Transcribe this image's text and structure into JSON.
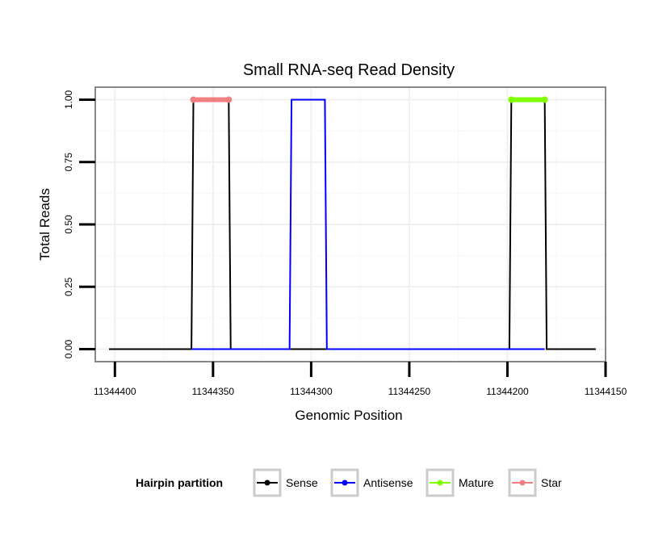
{
  "chart_data": {
    "type": "line",
    "title": "Small RNA-seq Read Density",
    "xlabel": "Genomic Position",
    "ylabel": "Total Reads",
    "x_reversed": true,
    "xlim": [
      11344410,
      11344150
    ],
    "ylim": [
      -0.05,
      1.05
    ],
    "x_ticks": [
      11344400,
      11344350,
      11344300,
      11344250,
      11344200,
      11344150
    ],
    "x_tick_labels": [
      "11344400",
      "11344350",
      "11344300",
      "11344250",
      "11344200",
      "11344150"
    ],
    "y_ticks": [
      0,
      0.25,
      0.5,
      0.75,
      1
    ],
    "y_tick_labels": [
      "0.00",
      "0.25",
      "0.50",
      "0.75",
      "1.00"
    ],
    "grid": true,
    "legend": {
      "title": "Hairpin partition",
      "position": "bottom",
      "entries": [
        "Sense",
        "Antisense",
        "Mature",
        "Star"
      ]
    },
    "series": [
      {
        "name": "Sense",
        "color": "#000000",
        "points": [
          [
            11344403,
            0
          ],
          [
            11344361,
            0
          ],
          [
            11344360,
            1
          ],
          [
            11344342,
            1
          ],
          [
            11344341,
            0
          ],
          [
            11344292,
            0
          ],
          [
            11344283,
            0
          ],
          [
            11344270,
            0
          ],
          [
            11344199,
            0
          ],
          [
            11344198,
            1
          ],
          [
            11344181,
            1
          ],
          [
            11344180,
            0
          ],
          [
            11344155,
            0
          ]
        ]
      },
      {
        "name": "Antisense",
        "color": "#0000ff",
        "points": [
          [
            11344361,
            0
          ],
          [
            11344342,
            0
          ],
          [
            11344342,
            0
          ],
          [
            11344311,
            0
          ],
          [
            11344310,
            1
          ],
          [
            11344293,
            1
          ],
          [
            11344292,
            0
          ],
          [
            11344281,
            0
          ],
          [
            11344199,
            0
          ],
          [
            11344181,
            0
          ]
        ]
      },
      {
        "name": "Mature",
        "color": "#7fff00",
        "points": [
          [
            11344198,
            1
          ],
          [
            11344181,
            1
          ]
        ]
      },
      {
        "name": "Star",
        "color": "#f08080",
        "points": [
          [
            11344360,
            1
          ],
          [
            11344342,
            1
          ]
        ]
      }
    ]
  }
}
